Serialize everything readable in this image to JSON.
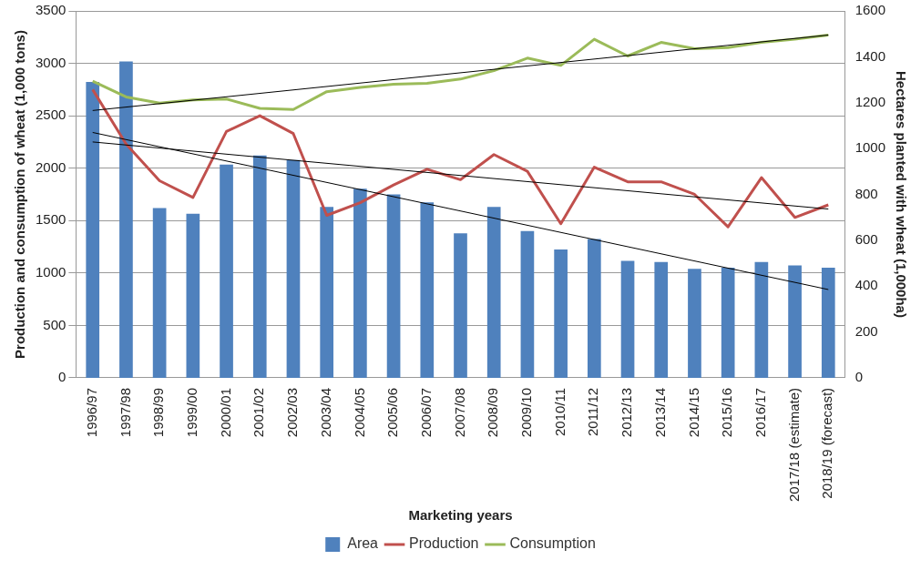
{
  "chart_data": {
    "type": "bar",
    "xlabel": "Marketing years",
    "ylabel": "Production and consumption of wheat (1,000 tons)",
    "y2label": "Hectares planted with wheat (1,000ha)",
    "categories": [
      "1996/97",
      "1997/98",
      "1998/99",
      "1999/00",
      "2000/01",
      "2001/02",
      "2002/03",
      "2003/04",
      "2004/05",
      "2005/06",
      "2006/07",
      "2007/08",
      "2008/09",
      "2009/10",
      "2010/11",
      "2011/12",
      "2012/13",
      "2013/14",
      "2014/15",
      "2015/16",
      "2016/17",
      "2017/18 (estimate)",
      "2018/19 (forecast)"
    ],
    "series": [
      {
        "name": "Area",
        "axis": "y2",
        "color": "#4f81bd",
        "values": [
          1290,
          1380,
          740,
          715,
          930,
          970,
          950,
          745,
          825,
          800,
          765,
          630,
          745,
          640,
          560,
          605,
          510,
          505,
          475,
          480,
          505,
          490,
          480
        ]
      },
      {
        "name": "Production",
        "type": "line",
        "color": "#c0504d",
        "values": [
          2750,
          2230,
          1880,
          1720,
          2350,
          2500,
          2330,
          1550,
          1670,
          1840,
          1990,
          1890,
          2130,
          1970,
          1470,
          2010,
          1870,
          1870,
          1750,
          1440,
          1910,
          1530,
          1650
        ]
      },
      {
        "name": "Consumption",
        "type": "line",
        "color": "#9bbb59",
        "values": [
          2830,
          2680,
          2620,
          2650,
          2660,
          2570,
          2560,
          2730,
          2770,
          2800,
          2810,
          2850,
          2930,
          3050,
          2980,
          3230,
          3070,
          3200,
          3140,
          3150,
          3200,
          3230,
          3270
        ]
      },
      {
        "type": "line",
        "axis": "y2",
        "color": "#000000",
        "x": [
          "1996/97",
          "2018/19 (forecast)"
        ],
        "values": [
          1070,
          385
        ]
      },
      {
        "type": "line",
        "color": "#000000",
        "x": [
          "1996/97",
          "2018/19 (forecast)"
        ],
        "values": [
          2250,
          1610
        ]
      },
      {
        "type": "line",
        "color": "#000000",
        "x": [
          "1996/97",
          "2018/19 (forecast)"
        ],
        "values": [
          2550,
          3270
        ]
      }
    ],
    "ylim": [
      0,
      3500
    ],
    "yticks": [
      0,
      500,
      1000,
      1500,
      2000,
      2500,
      3000,
      3500
    ],
    "y2lim": [
      0,
      1600
    ],
    "y2ticks": [
      0,
      200,
      400,
      600,
      800,
      1000,
      1200,
      1400,
      1600
    ],
    "grid": "y",
    "legend": "bottom",
    "marker": "none"
  }
}
